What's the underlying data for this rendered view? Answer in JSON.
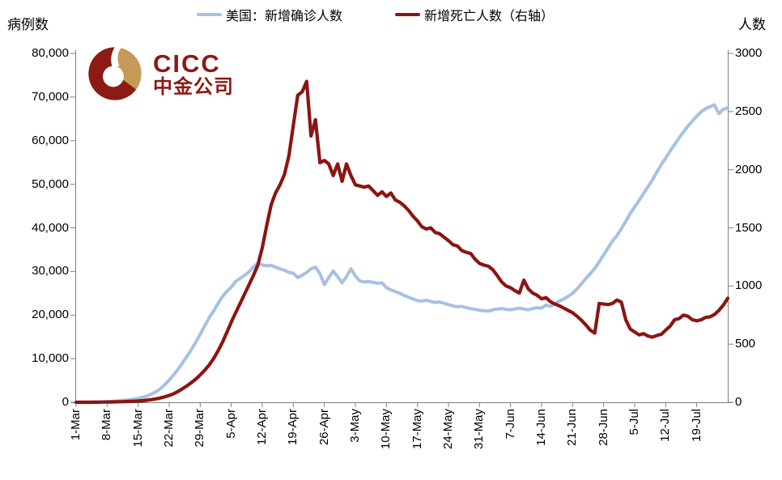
{
  "header": {
    "left_axis_title": "病例数",
    "right_axis_title": "人数"
  },
  "legend": {
    "items": [
      {
        "label": "美国：新增确诊人数",
        "color": "#A6C1E1"
      },
      {
        "label": "新增死亡人数（右轴）",
        "color": "#8B1512"
      }
    ]
  },
  "logo": {
    "brand": "CICC",
    "brand_cn": "中金公司",
    "maroon": "#8C1A15",
    "gold": "#C59A58"
  },
  "chart_data": {
    "type": "line",
    "title": "",
    "grid": false,
    "legend_position": "top-center",
    "x_start": "1-Mar",
    "x_end": "26-Jul",
    "x_tick_labels": [
      "1-Mar",
      "8-Mar",
      "15-Mar",
      "22-Mar",
      "29-Mar",
      "5-Apr",
      "12-Apr",
      "19-Apr",
      "26-Apr",
      "3-May",
      "10-May",
      "17-May",
      "24-May",
      "31-May",
      "7-Jun",
      "14-Jun",
      "21-Jun",
      "28-Jun",
      "5-Jul",
      "12-Jul",
      "19-Jul"
    ],
    "left_axis": {
      "label": "病例数",
      "min": 0,
      "max": 80000,
      "tick_step": 10000,
      "tick_labels": [
        "0",
        "10,000",
        "20,000",
        "30,000",
        "40,000",
        "50,000",
        "60,000",
        "70,000",
        "80,000"
      ]
    },
    "right_axis": {
      "label": "人数",
      "min": 0,
      "max": 3000,
      "tick_step": 500,
      "tick_labels": [
        "0",
        "500",
        "1000",
        "1500",
        "2000",
        "2500",
        "3000"
      ]
    },
    "axis_color": "#808080",
    "series": [
      {
        "name": "美国：新增确诊人数",
        "axis": "left",
        "color": "#A6C1E1",
        "width": 4,
        "values": [
          30,
          35,
          40,
          50,
          70,
          90,
          120,
          160,
          210,
          280,
          370,
          470,
          590,
          720,
          900,
          1150,
          1450,
          1900,
          2400,
          3100,
          4000,
          5100,
          6300,
          7600,
          9000,
          10500,
          12100,
          13800,
          15600,
          17500,
          19400,
          20900,
          22600,
          24200,
          25400,
          26400,
          27700,
          28400,
          29100,
          29900,
          31000,
          31900,
          31500,
          31300,
          31400,
          31000,
          30600,
          30300,
          29800,
          29600,
          28600,
          29100,
          29800,
          30600,
          31000,
          29500,
          27000,
          28600,
          30100,
          28800,
          27400,
          28800,
          30600,
          29000,
          27800,
          27600,
          27700,
          27500,
          27300,
          27400,
          26300,
          25800,
          25400,
          25000,
          24500,
          24100,
          23700,
          23300,
          23200,
          23400,
          23100,
          22900,
          23000,
          22700,
          22400,
          22100,
          21900,
          22000,
          21700,
          21500,
          21300,
          21100,
          21000,
          20900,
          21200,
          21400,
          21500,
          21300,
          21200,
          21400,
          21600,
          21400,
          21200,
          21500,
          21700,
          21600,
          22300,
          22000,
          22600,
          23200,
          23700,
          24300,
          25000,
          26000,
          27200,
          28400,
          29500,
          30700,
          32200,
          33800,
          35400,
          37000,
          38200,
          39800,
          41500,
          43300,
          44800,
          46300,
          47900,
          49400,
          51000,
          52800,
          54500,
          56000,
          57600,
          59100,
          60600,
          62000,
          63300,
          64500,
          65600,
          66600,
          67300,
          67800,
          68200,
          66200,
          67200,
          67500
        ]
      },
      {
        "name": "新增死亡人数（右轴）",
        "axis": "right",
        "color": "#8B1512",
        "width": 4.2,
        "values": [
          0,
          0,
          0,
          0,
          1,
          1,
          2,
          2,
          3,
          4,
          5,
          6,
          8,
          9,
          11,
          14,
          18,
          23,
          29,
          37,
          47,
          59,
          74,
          93,
          116,
          141,
          169,
          200,
          235,
          275,
          320,
          375,
          440,
          515,
          600,
          690,
          770,
          850,
          930,
          1010,
          1090,
          1180,
          1330,
          1520,
          1700,
          1800,
          1870,
          1960,
          2120,
          2380,
          2640,
          2670,
          2760,
          2290,
          2430,
          2060,
          2080,
          2050,
          1950,
          2050,
          1900,
          2050,
          1950,
          1870,
          1860,
          1850,
          1860,
          1820,
          1780,
          1810,
          1770,
          1800,
          1740,
          1720,
          1690,
          1650,
          1600,
          1560,
          1510,
          1490,
          1500,
          1460,
          1450,
          1420,
          1390,
          1355,
          1345,
          1305,
          1290,
          1280,
          1230,
          1195,
          1180,
          1170,
          1140,
          1090,
          1035,
          1000,
          985,
          960,
          940,
          1050,
          975,
          940,
          920,
          890,
          900,
          865,
          845,
          830,
          810,
          790,
          770,
          740,
          705,
          665,
          620,
          595,
          850,
          845,
          840,
          850,
          880,
          860,
          710,
          630,
          605,
          580,
          590,
          570,
          560,
          575,
          585,
          620,
          655,
          710,
          720,
          750,
          740,
          710,
          700,
          710,
          730,
          735,
          755,
          790,
          835,
          895
        ]
      }
    ]
  }
}
